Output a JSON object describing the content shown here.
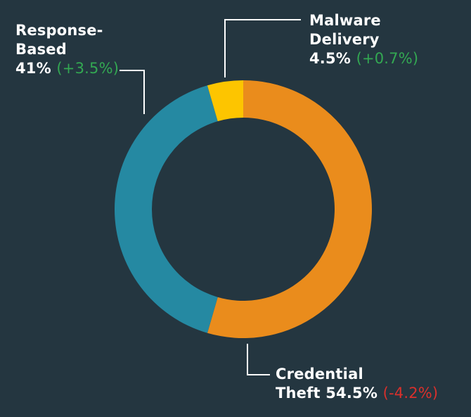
{
  "colors": {
    "background": "#243640",
    "positive": "#33a852",
    "negative": "#d9302c",
    "leader": "#ffffff"
  },
  "chart_data": {
    "type": "pie",
    "donut": true,
    "slices": [
      {
        "name_line1": "Credential",
        "name_line2": "Theft",
        "value": 54.5,
        "value_text": "54.5%",
        "change": "(-4.2%)",
        "change_sign": "negative",
        "color": "#ea8c1c"
      },
      {
        "name_line1": "Response-",
        "name_line2": "Based",
        "value": 41,
        "value_text": "41%",
        "change": "(+3.5%)",
        "change_sign": "positive",
        "color": "#2589a2"
      },
      {
        "name_line1": "Malware",
        "name_line2": "Delivery",
        "value": 4.5,
        "value_text": "4.5%",
        "change": "(+0.7%)",
        "change_sign": "positive",
        "color": "#fdc500"
      }
    ]
  }
}
